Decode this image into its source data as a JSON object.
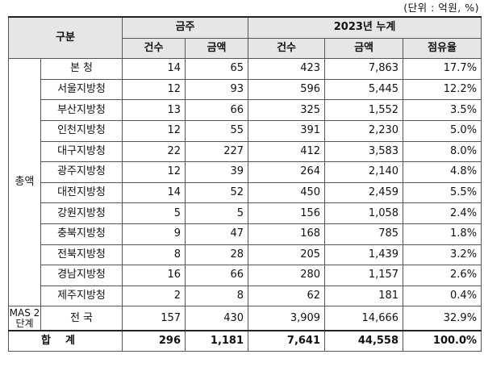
{
  "unit_note": "(단위 : 억원, %)",
  "header": {
    "category": "구분",
    "group_week": "금주",
    "group_year": "2023년 누계",
    "col_count": "건수",
    "col_amount": "금액",
    "col_share": "점유율"
  },
  "section_label": "총액",
  "mas_label": "MAS 2단계",
  "rows": [
    {
      "name": "본 청",
      "w_count": "14",
      "w_amount": "65",
      "y_count": "423",
      "y_amount": "7,863",
      "share": "17.7%"
    },
    {
      "name": "서울지방청",
      "w_count": "12",
      "w_amount": "93",
      "y_count": "596",
      "y_amount": "5,445",
      "share": "12.2%"
    },
    {
      "name": "부산지방청",
      "w_count": "13",
      "w_amount": "66",
      "y_count": "325",
      "y_amount": "1,552",
      "share": "3.5%"
    },
    {
      "name": "인천지방청",
      "w_count": "12",
      "w_amount": "55",
      "y_count": "391",
      "y_amount": "2,230",
      "share": "5.0%"
    },
    {
      "name": "대구지방청",
      "w_count": "22",
      "w_amount": "227",
      "y_count": "412",
      "y_amount": "3,583",
      "share": "8.0%"
    },
    {
      "name": "광주지방청",
      "w_count": "12",
      "w_amount": "39",
      "y_count": "264",
      "y_amount": "2,140",
      "share": "4.8%"
    },
    {
      "name": "대전지방청",
      "w_count": "14",
      "w_amount": "52",
      "y_count": "450",
      "y_amount": "2,459",
      "share": "5.5%"
    },
    {
      "name": "강원지방청",
      "w_count": "5",
      "w_amount": "5",
      "y_count": "156",
      "y_amount": "1,058",
      "share": "2.4%"
    },
    {
      "name": "충북지방청",
      "w_count": "9",
      "w_amount": "47",
      "y_count": "168",
      "y_amount": "785",
      "share": "1.8%"
    },
    {
      "name": "전북지방청",
      "w_count": "8",
      "w_amount": "28",
      "y_count": "205",
      "y_amount": "1,439",
      "share": "3.2%"
    },
    {
      "name": "경남지방청",
      "w_count": "16",
      "w_amount": "66",
      "y_count": "280",
      "y_amount": "1,157",
      "share": "2.6%"
    },
    {
      "name": "제주지방청",
      "w_count": "2",
      "w_amount": "8",
      "y_count": "62",
      "y_amount": "181",
      "share": "0.4%"
    }
  ],
  "mas_row": {
    "name": "전 국",
    "w_count": "157",
    "w_amount": "430",
    "y_count": "3,909",
    "y_amount": "14,666",
    "share": "32.9%"
  },
  "total_row": {
    "label": "합계",
    "w_count": "296",
    "w_amount": "1,181",
    "y_count": "7,641",
    "y_amount": "44,558",
    "share": "100.0%"
  }
}
